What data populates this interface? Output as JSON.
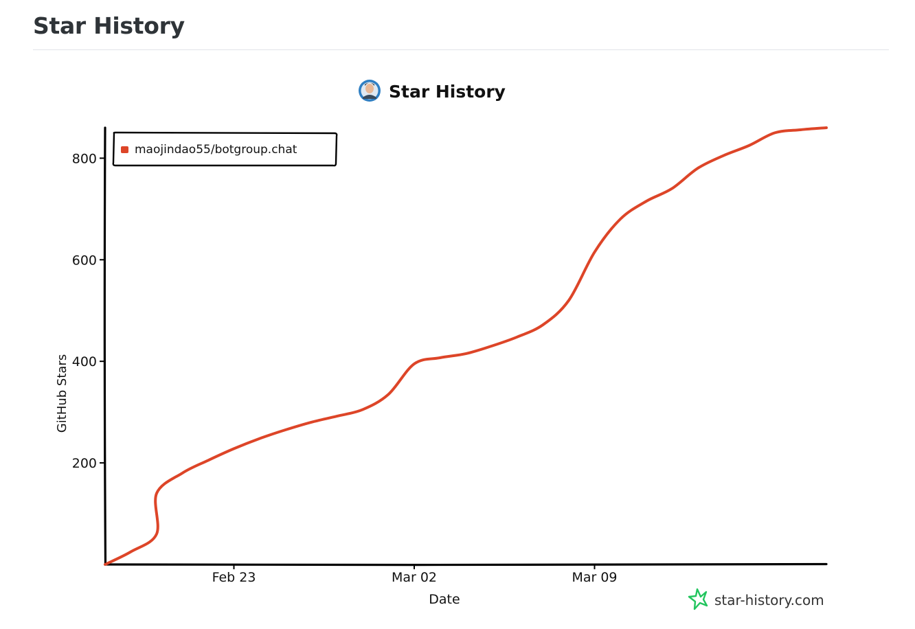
{
  "page": {
    "title": "Star History"
  },
  "chart_data": {
    "type": "line",
    "title": "Star History",
    "xlabel": "Date",
    "ylabel": "GitHub Stars",
    "x_tick_labels": [
      "Feb 23",
      "Mar 02",
      "Mar 09"
    ],
    "y_ticks": [
      200,
      400,
      600,
      800
    ],
    "ylim": [
      0,
      860
    ],
    "xlim": [
      "2026-02-18",
      "2026-03-18"
    ],
    "legend_position": "top-left",
    "watermark": "star-history.com",
    "colors": {
      "series": "#dd4528",
      "axis": "#000000",
      "watermark_icon": "#22c55e"
    },
    "series": [
      {
        "name": "maojindao55/botgroup.chat",
        "x": [
          "2026-02-18",
          "2026-02-19",
          "2026-02-20",
          "2026-02-20",
          "2026-02-21",
          "2026-02-22",
          "2026-02-23",
          "2026-02-24",
          "2026-02-25",
          "2026-02-26",
          "2026-02-27",
          "2026-02-28",
          "2026-03-01",
          "2026-03-02",
          "2026-03-03",
          "2026-03-04",
          "2026-03-05",
          "2026-03-06",
          "2026-03-07",
          "2026-03-08",
          "2026-03-09",
          "2026-03-10",
          "2026-03-11",
          "2026-03-12",
          "2026-03-13",
          "2026-03-14",
          "2026-03-15",
          "2026-03-16",
          "2026-03-17",
          "2026-03-18"
        ],
        "values": [
          0,
          25,
          60,
          140,
          180,
          205,
          228,
          248,
          265,
          280,
          292,
          305,
          335,
          395,
          407,
          415,
          430,
          448,
          472,
          520,
          615,
          680,
          715,
          740,
          780,
          805,
          825,
          850,
          856,
          860
        ]
      }
    ]
  }
}
